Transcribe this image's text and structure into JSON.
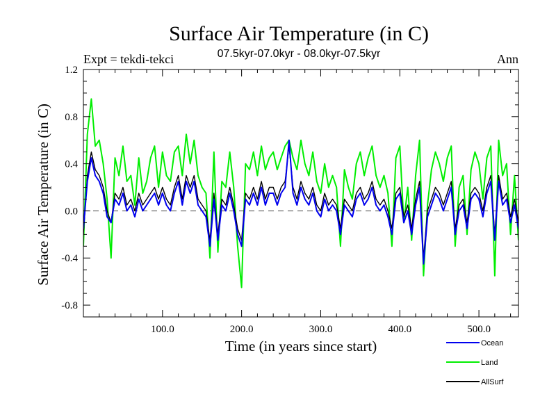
{
  "chart_data": {
    "type": "line",
    "title": "Surface Air Temperature (in C)",
    "subtitle": "07.5kyr-07.0kyr - 08.0kyr-07.5kyr",
    "left_label": "Expt = tekdi-tekci",
    "right_label": "Ann",
    "xlabel": "Time (in years since start)",
    "ylabel": "Surface Air Temperature (in C)",
    "xlim": [
      0,
      550
    ],
    "ylim": [
      -0.9,
      1.2
    ],
    "xticks": [
      100,
      200,
      300,
      400,
      500
    ],
    "xtick_labels": [
      "100.0",
      "200.0",
      "300.0",
      "400.0",
      "500.0"
    ],
    "yticks": [
      -0.8,
      -0.4,
      0.0,
      0.4,
      0.8,
      1.2
    ],
    "ytick_labels": [
      "-0.8",
      "-0.4",
      "0.0",
      "0.4",
      "0.8",
      "1.2"
    ],
    "reference_line": 0.0,
    "legend": {
      "placement": "bottom-right",
      "entries": [
        "Ocean",
        "Land",
        "AllSurf"
      ]
    },
    "series": [
      {
        "name": "Land",
        "color": "#00ee00",
        "x": [
          0,
          5,
          10,
          15,
          20,
          25,
          30,
          35,
          40,
          45,
          50,
          55,
          60,
          65,
          70,
          75,
          80,
          85,
          90,
          95,
          100,
          105,
          110,
          115,
          120,
          125,
          130,
          135,
          140,
          145,
          150,
          155,
          160,
          165,
          170,
          175,
          180,
          185,
          190,
          195,
          200,
          205,
          210,
          215,
          220,
          225,
          230,
          235,
          240,
          245,
          250,
          255,
          260,
          265,
          270,
          275,
          280,
          285,
          290,
          295,
          300,
          305,
          310,
          315,
          320,
          325,
          330,
          335,
          340,
          345,
          350,
          355,
          360,
          365,
          370,
          375,
          380,
          385,
          390,
          395,
          400,
          405,
          410,
          415,
          420,
          425,
          430,
          435,
          440,
          445,
          450,
          455,
          460,
          465,
          470,
          475,
          480,
          485,
          490,
          495,
          500,
          505,
          510,
          515,
          520,
          525,
          530,
          535,
          540,
          545,
          550
        ],
        "values": [
          -0.3,
          0.65,
          0.95,
          0.55,
          0.6,
          0.4,
          0.1,
          -0.4,
          0.45,
          0.3,
          0.55,
          0.25,
          0.3,
          0.05,
          0.45,
          0.15,
          0.25,
          0.45,
          0.55,
          0.2,
          0.5,
          0.3,
          0.25,
          0.5,
          0.55,
          0.3,
          0.65,
          0.4,
          0.6,
          0.3,
          0.2,
          0.15,
          -0.4,
          0.5,
          -0.35,
          0.25,
          0.2,
          0.5,
          0.2,
          -0.3,
          -0.65,
          0.4,
          0.35,
          0.5,
          0.3,
          0.55,
          0.35,
          0.45,
          0.5,
          0.35,
          0.45,
          0.55,
          0.6,
          0.45,
          0.35,
          0.6,
          0.4,
          0.3,
          0.5,
          0.25,
          0.15,
          0.4,
          0.2,
          0.3,
          0.2,
          -0.3,
          0.35,
          0.2,
          0.1,
          0.4,
          0.5,
          0.3,
          0.45,
          0.55,
          0.3,
          0.2,
          0.3,
          0.15,
          -0.3,
          0.45,
          0.55,
          -0.1,
          0.2,
          -0.25,
          0.3,
          0.6,
          -0.55,
          0.05,
          0.35,
          0.5,
          0.4,
          0.25,
          0.45,
          0.55,
          -0.3,
          0.2,
          0.3,
          -0.2,
          0.35,
          0.5,
          0.4,
          0.1,
          0.45,
          0.55,
          -0.55,
          0.6,
          0.3,
          0.4,
          -0.2,
          0.3,
          -0.25
        ]
      },
      {
        "name": "AllSurf",
        "color": "#000000",
        "x": [
          0,
          5,
          10,
          15,
          20,
          25,
          30,
          35,
          40,
          45,
          50,
          55,
          60,
          65,
          70,
          75,
          80,
          85,
          90,
          95,
          100,
          105,
          110,
          115,
          120,
          125,
          130,
          135,
          140,
          145,
          150,
          155,
          160,
          165,
          170,
          175,
          180,
          185,
          190,
          195,
          200,
          205,
          210,
          215,
          220,
          225,
          230,
          235,
          240,
          245,
          250,
          255,
          260,
          265,
          270,
          275,
          280,
          285,
          290,
          295,
          300,
          305,
          310,
          315,
          320,
          325,
          330,
          335,
          340,
          345,
          350,
          355,
          360,
          365,
          370,
          375,
          380,
          385,
          390,
          395,
          400,
          405,
          410,
          415,
          420,
          425,
          430,
          435,
          440,
          445,
          450,
          455,
          460,
          465,
          470,
          475,
          480,
          485,
          490,
          495,
          500,
          505,
          510,
          515,
          520,
          525,
          530,
          535,
          540,
          545,
          550
        ],
        "values": [
          -0.2,
          0.3,
          0.5,
          0.35,
          0.3,
          0.2,
          0.0,
          -0.1,
          0.15,
          0.1,
          0.2,
          0.05,
          0.1,
          0.0,
          0.15,
          0.05,
          0.1,
          0.15,
          0.2,
          0.1,
          0.2,
          0.1,
          0.05,
          0.2,
          0.3,
          0.1,
          0.3,
          0.2,
          0.3,
          0.1,
          0.05,
          0.0,
          -0.25,
          0.15,
          -0.2,
          0.1,
          0.05,
          0.2,
          0.05,
          -0.15,
          -0.25,
          0.15,
          0.1,
          0.2,
          0.1,
          0.25,
          0.1,
          0.2,
          0.2,
          0.1,
          0.2,
          0.25,
          0.55,
          0.2,
          0.1,
          0.25,
          0.15,
          0.1,
          0.2,
          0.05,
          0.0,
          0.15,
          0.05,
          0.1,
          0.05,
          -0.15,
          0.1,
          0.05,
          0.0,
          0.15,
          0.2,
          0.1,
          0.15,
          0.25,
          0.1,
          0.05,
          0.1,
          0.0,
          -0.15,
          0.15,
          0.2,
          -0.05,
          0.05,
          -0.15,
          0.1,
          0.25,
          -0.4,
          0.0,
          0.1,
          0.2,
          0.15,
          0.05,
          0.15,
          0.25,
          -0.15,
          0.05,
          0.1,
          -0.1,
          0.15,
          0.2,
          0.15,
          0.0,
          0.2,
          0.3,
          -0.2,
          0.3,
          0.1,
          0.15,
          -0.05,
          0.1,
          -0.1
        ]
      },
      {
        "name": "Ocean",
        "color": "#0000ee",
        "x": [
          0,
          5,
          10,
          15,
          20,
          25,
          30,
          35,
          40,
          45,
          50,
          55,
          60,
          65,
          70,
          75,
          80,
          85,
          90,
          95,
          100,
          105,
          110,
          115,
          120,
          125,
          130,
          135,
          140,
          145,
          150,
          155,
          160,
          165,
          170,
          175,
          180,
          185,
          190,
          195,
          200,
          205,
          210,
          215,
          220,
          225,
          230,
          235,
          240,
          245,
          250,
          255,
          260,
          265,
          270,
          275,
          280,
          285,
          290,
          295,
          300,
          305,
          310,
          315,
          320,
          325,
          330,
          335,
          340,
          345,
          350,
          355,
          360,
          365,
          370,
          375,
          380,
          385,
          390,
          395,
          400,
          405,
          410,
          415,
          420,
          425,
          430,
          435,
          440,
          445,
          450,
          455,
          460,
          465,
          470,
          475,
          480,
          485,
          490,
          495,
          500,
          505,
          510,
          515,
          520,
          525,
          530,
          535,
          540,
          545,
          550
        ],
        "values": [
          -0.15,
          0.25,
          0.45,
          0.3,
          0.25,
          0.15,
          -0.05,
          -0.1,
          0.1,
          0.05,
          0.15,
          0.0,
          0.05,
          -0.05,
          0.1,
          0.0,
          0.05,
          0.1,
          0.15,
          0.05,
          0.15,
          0.05,
          0.0,
          0.15,
          0.25,
          0.05,
          0.25,
          0.15,
          0.25,
          0.05,
          0.0,
          -0.05,
          -0.3,
          0.1,
          -0.25,
          0.05,
          0.0,
          0.15,
          0.0,
          -0.2,
          -0.3,
          0.1,
          0.05,
          0.15,
          0.05,
          0.2,
          0.05,
          0.15,
          0.15,
          0.05,
          0.15,
          0.2,
          0.6,
          0.15,
          0.05,
          0.2,
          0.1,
          0.05,
          0.15,
          0.0,
          -0.05,
          0.1,
          0.0,
          0.05,
          0.0,
          -0.2,
          0.05,
          0.0,
          -0.05,
          0.1,
          0.15,
          0.05,
          0.1,
          0.2,
          0.05,
          0.0,
          0.05,
          -0.05,
          -0.2,
          0.1,
          0.15,
          -0.1,
          0.0,
          -0.2,
          0.05,
          0.2,
          -0.45,
          -0.05,
          0.05,
          0.15,
          0.1,
          0.0,
          0.1,
          0.2,
          -0.2,
          0.0,
          0.05,
          -0.15,
          0.1,
          0.15,
          0.1,
          -0.05,
          0.15,
          0.25,
          -0.25,
          0.25,
          0.05,
          0.1,
          -0.1,
          0.05,
          -0.15
        ]
      }
    ]
  }
}
